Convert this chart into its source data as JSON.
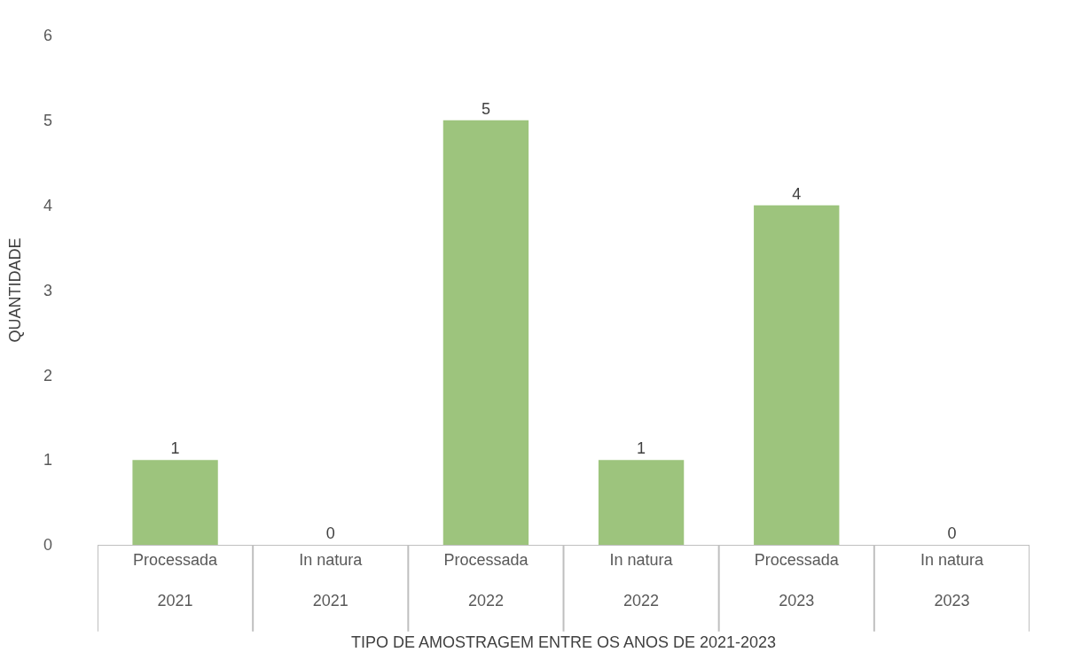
{
  "chart_data": {
    "type": "bar",
    "xlabel": "TIPO DE AMOSTRAGEM ENTRE OS ANOS DE 2021-2023",
    "ylabel": "QUANTIDADE",
    "categories": [
      "Processada\n2021",
      "In natura\n2021",
      "Processada\n2022",
      "In natura\n2022",
      "Processada\n2023",
      "In natura\n2023"
    ],
    "values": [
      1,
      0,
      5,
      1,
      4,
      0
    ],
    "color": "#9dc47d",
    "ylim": [
      0,
      6
    ],
    "yticks": [
      0,
      1,
      2,
      3,
      4,
      5,
      6
    ],
    "data_labels": true,
    "legend": false
  }
}
